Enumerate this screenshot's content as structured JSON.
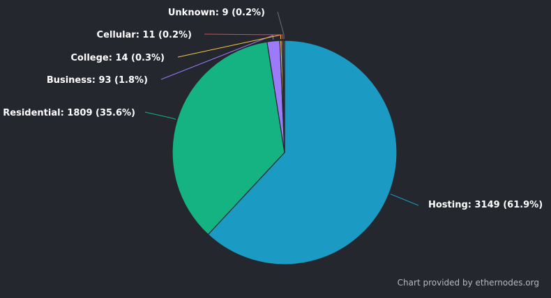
{
  "chart_data": {
    "type": "pie",
    "slices": [
      {
        "label": "Hosting",
        "value": 3149,
        "percent": "61.9%",
        "color": "#1b9ac4"
      },
      {
        "label": "Residential",
        "value": 1809,
        "percent": "35.6%",
        "color": "#14b381"
      },
      {
        "label": "Business",
        "value": 93,
        "percent": "1.8%",
        "color": "#9b7bf7"
      },
      {
        "label": "College",
        "value": 14,
        "percent": "0.3%",
        "color": "#f2c94c"
      },
      {
        "label": "Cellular",
        "value": 11,
        "percent": "0.2%",
        "color": "#e0474c"
      },
      {
        "label": "Unknown",
        "value": 9,
        "percent": "0.2%",
        "color": "#6e7077"
      }
    ]
  },
  "credit": "Chart provided by ethernodes.org"
}
